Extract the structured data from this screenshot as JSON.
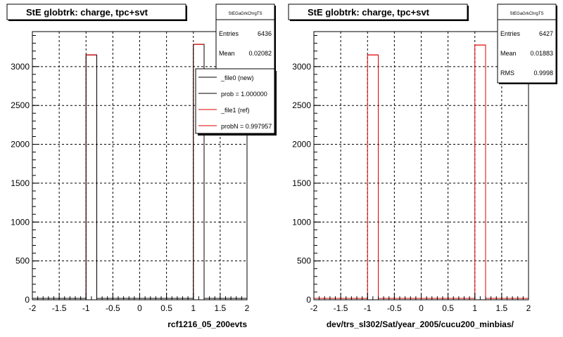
{
  "chart_data": [
    {
      "type": "bar",
      "title": "StE globtrk: charge, tpc+svt",
      "xlabel": "rcf1216_05_200evts",
      "ylabel": "",
      "xlim": [
        -2,
        2
      ],
      "ylim": [
        0,
        3450
      ],
      "x_ticks": [
        "-2",
        "-1.5",
        "-1",
        "-0.5",
        "0",
        "0.5",
        "1",
        "1.5",
        "2"
      ],
      "y_ticks": [
        "0",
        "500",
        "1000",
        "1500",
        "2000",
        "2500",
        "3000"
      ],
      "grid": true,
      "bin_width": 0.2,
      "bins": [
        {
          "x0": -1.0,
          "x1": -0.8,
          "value": 3150
        },
        {
          "x0": 1.0,
          "x1": 1.2,
          "value": 3286
        }
      ],
      "series": [
        {
          "name": "_file0 (new)",
          "color": "#000000",
          "bins": [
            {
              "x0": -1.0,
              "x1": -0.8,
              "value": 3150
            },
            {
              "x0": 1.0,
              "x1": 1.2,
              "value": 3286
            }
          ]
        },
        {
          "name": "_file1 (ref)",
          "color": "#dd0000",
          "bins": [
            {
              "x0": -1.0,
              "x1": -0.8,
              "value": 3150
            },
            {
              "x0": 1.0,
              "x1": 1.2,
              "value": 3286
            }
          ]
        }
      ],
      "stats": {
        "name": "StEGaGrkChrgTS",
        "rows": [
          {
            "label": "Entries",
            "value": "6436"
          },
          {
            "label": "Mean",
            "value": "0.02082"
          }
        ]
      },
      "legend": {
        "placement": "top-right",
        "entries": [
          {
            "label": "_file0 (new)",
            "color": "#000000"
          },
          {
            "label": "prob = 1.000000",
            "color": "#000000"
          },
          {
            "label": "_file1 (ref)",
            "color": "#dd0000"
          },
          {
            "label": "probN = 0.997957",
            "color": "#dd0000"
          }
        ]
      }
    },
    {
      "type": "bar",
      "title": "StE globtrk: charge, tpc+svt",
      "xlabel": "dev/trs_sl302/Sat/year_2005/cucu200_minbias/",
      "ylabel": "",
      "xlim": [
        -2,
        2
      ],
      "ylim": [
        0,
        3450
      ],
      "x_ticks": [
        "-2",
        "-1.5",
        "-1",
        "-0.5",
        "0",
        "0.5",
        "1",
        "1.5",
        "2"
      ],
      "y_ticks": [
        "0",
        "500",
        "1000",
        "1500",
        "2000",
        "2500",
        "3000"
      ],
      "grid": true,
      "bin_width": 0.2,
      "bins": [
        {
          "x0": -1.0,
          "x1": -0.8,
          "value": 3150
        },
        {
          "x0": 1.0,
          "x1": 1.2,
          "value": 3277
        }
      ],
      "series": [
        {
          "name": "",
          "color": "#dd0000",
          "bins": [
            {
              "x0": -1.0,
              "x1": -0.8,
              "value": 3150
            },
            {
              "x0": 1.0,
              "x1": 1.2,
              "value": 3277
            }
          ]
        }
      ],
      "stats": {
        "name": "StEGaGrkChrgTS",
        "rows": [
          {
            "label": "Entries",
            "value": "6427"
          },
          {
            "label": "Mean",
            "value": "0.01883"
          },
          {
            "label": "RMS",
            "value": "0.9998"
          }
        ]
      }
    }
  ]
}
